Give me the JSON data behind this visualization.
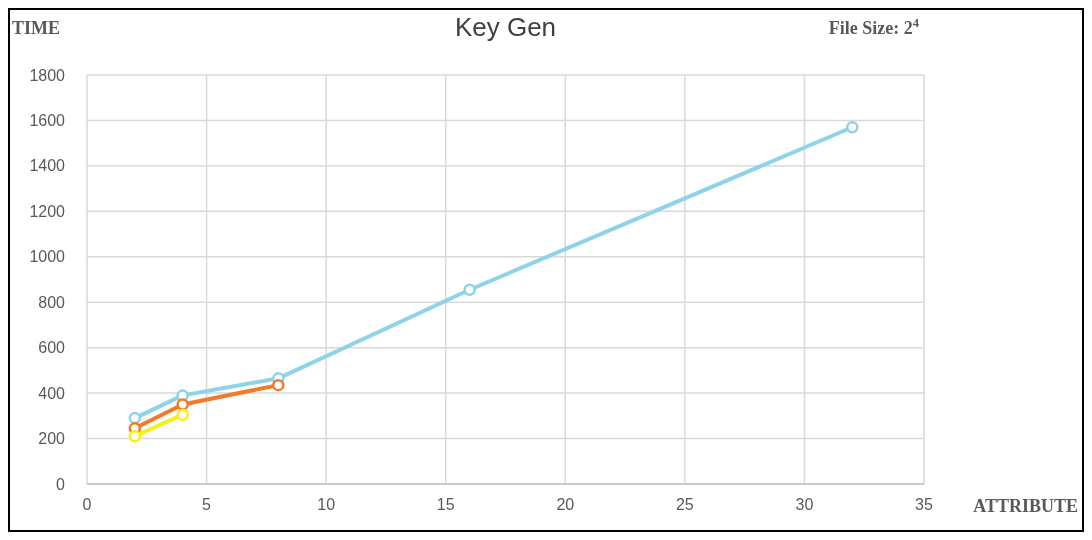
{
  "chart_data": {
    "type": "line",
    "title": "Key Gen",
    "subtitle": "File Size: 2$^{4}$",
    "xlabel": "ATTRIBUTE",
    "ylabel": "TIME",
    "xlim": [
      0,
      35
    ],
    "xticks": [
      0,
      5,
      10,
      15,
      20,
      25,
      30,
      35
    ],
    "ylim": [
      0,
      1800
    ],
    "yticks": [
      0,
      200,
      400,
      600,
      800,
      1000,
      1200,
      1400,
      1600,
      1800
    ],
    "grid": true,
    "marker": "circle",
    "line_style": "solid",
    "series": [
      {
        "color": "#8fd3e8",
        "x": [
          2,
          4,
          8,
          16,
          32
        ],
        "values": [
          290,
          390,
          465,
          855,
          1570
        ]
      },
      {
        "color": "#f47a2a",
        "x": [
          2,
          4,
          8
        ],
        "values": [
          245,
          350,
          435
        ]
      },
      {
        "color": "#f7ee1a",
        "x": [
          2,
          4
        ],
        "values": [
          210,
          305
        ]
      }
    ]
  }
}
